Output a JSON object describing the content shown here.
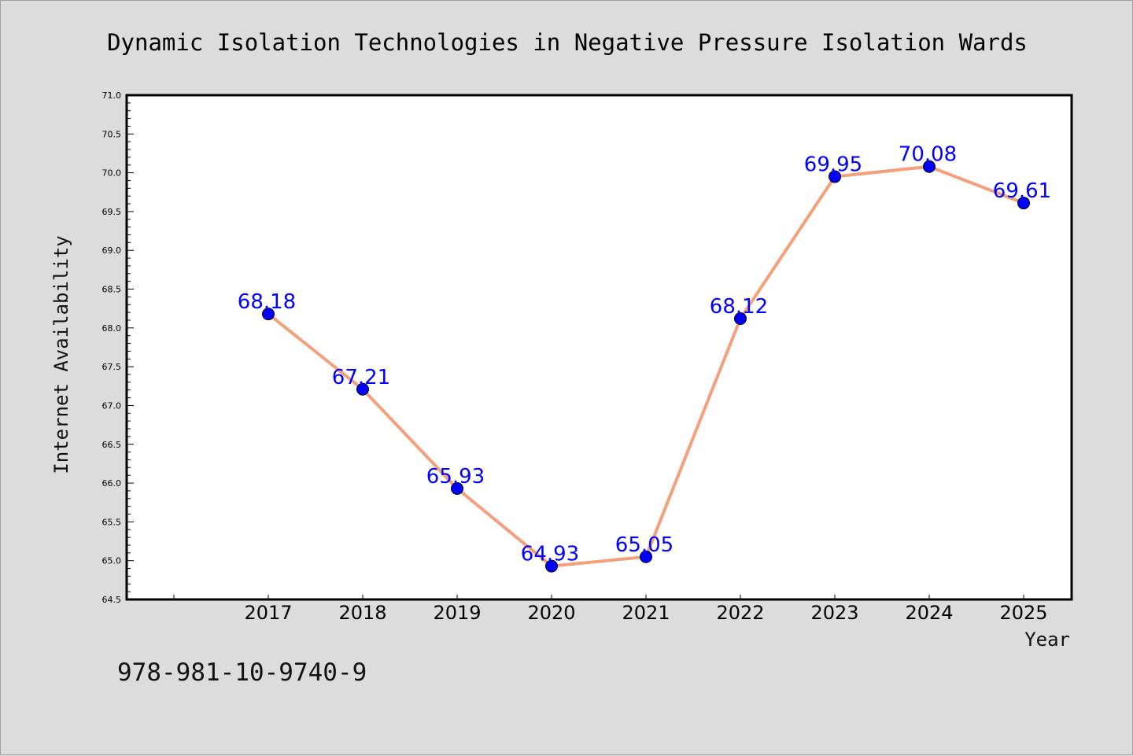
{
  "isbn": "978-981-10-9740-9",
  "colors": {
    "background": "#dcdcdc",
    "plot_background": "#ffffff",
    "line": "#f4a07c",
    "marker": "#0000ff",
    "data_label": "#0000ff"
  },
  "chart_data": {
    "type": "line",
    "title": "Dynamic Isolation Technologies in Negative Pressure Isolation Wards",
    "xlabel": "Year",
    "ylabel": "Internet Availability",
    "categories": [
      "2017",
      "2018",
      "2019",
      "2020",
      "2021",
      "2022",
      "2023",
      "2024",
      "2025"
    ],
    "series": [
      {
        "values": [
          68.18,
          67.21,
          65.93,
          64.93,
          65.05,
          68.12,
          69.95,
          70.08,
          69.61
        ],
        "labels": [
          "68.18",
          "67.21",
          "65.93",
          "64.93",
          "65.05",
          "68.12",
          "69.95",
          "70.08",
          "69.61"
        ]
      }
    ],
    "ylim": [
      64.5,
      71.0
    ],
    "yticks": [
      "64.5",
      "65.0",
      "65.5",
      "66.0",
      "66.5",
      "67.0",
      "67.5",
      "68.0",
      "68.5",
      "69.0",
      "69.5",
      "70.0",
      "70.5",
      "71.0"
    ],
    "grid": false,
    "legend": "none"
  }
}
